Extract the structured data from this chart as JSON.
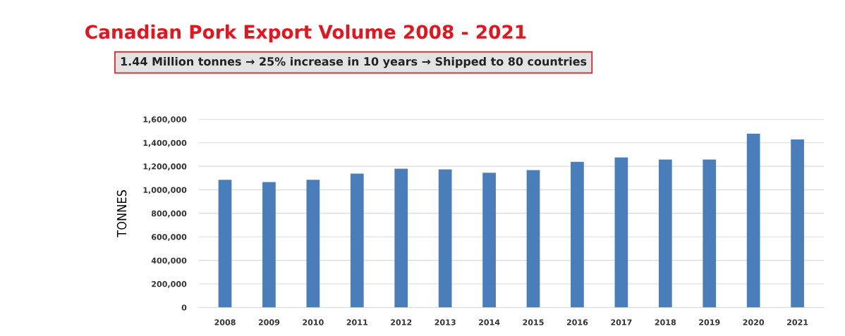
{
  "chart_data": {
    "type": "bar",
    "title": "Canadian Pork Export Volume 2008 - 2021",
    "subtitle": "1.44 Million tonnes → 25% increase in 10 years → Shipped to 80 countries",
    "ylabel": "TONNES",
    "categories": [
      "2008",
      "2009",
      "2010",
      "2011",
      "2012",
      "2013",
      "2014",
      "2015",
      "2016",
      "2017",
      "2018",
      "2019",
      "2020",
      "2021"
    ],
    "values": [
      1086000,
      1066000,
      1086000,
      1138000,
      1179000,
      1173000,
      1146000,
      1168000,
      1238000,
      1275000,
      1258000,
      1258000,
      1477000,
      1428000
    ],
    "color": "#4a7ebb",
    "ylim": [
      0,
      1600000
    ],
    "yticks": [
      {
        "value": 0,
        "label": "0"
      },
      {
        "value": 200000,
        "label": "200,000"
      },
      {
        "value": 400000,
        "label": "400,000"
      },
      {
        "value": 600000,
        "label": "600,000"
      },
      {
        "value": 800000,
        "label": "800,000"
      },
      {
        "value": 1000000,
        "label": "1,000,000"
      },
      {
        "value": 1200000,
        "label": "1,200,000"
      },
      {
        "value": 1400000,
        "label": "1,400,000"
      },
      {
        "value": 1600000,
        "label": "1,600,000"
      }
    ],
    "grid": "y"
  }
}
